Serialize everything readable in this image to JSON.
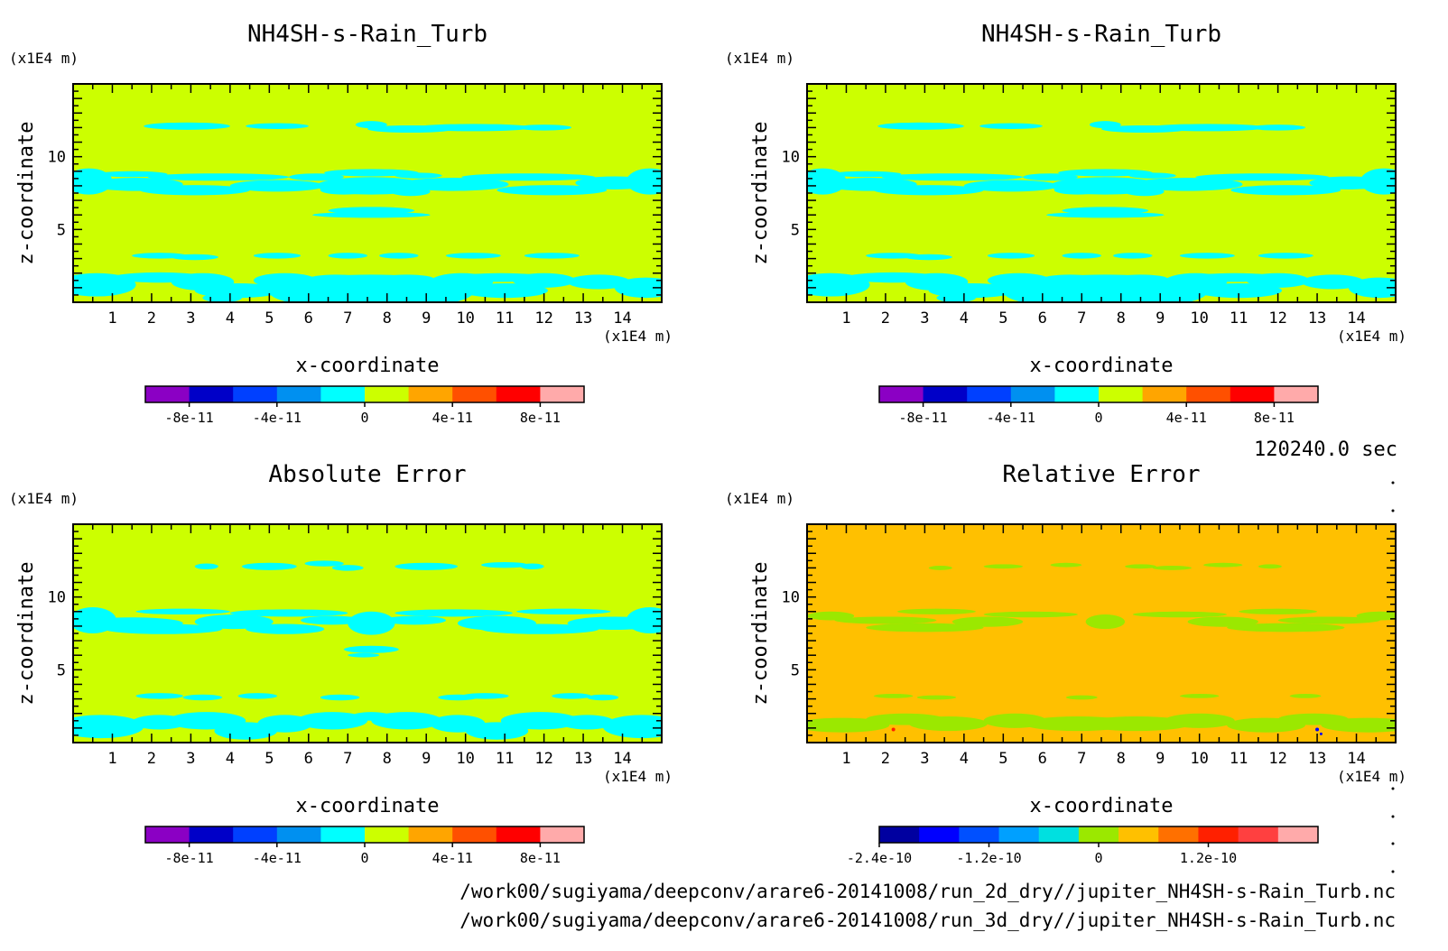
{
  "colors": {
    "frame": "#000000",
    "abs_palette": [
      "#8b00c4",
      "#0000c8",
      "#0040ff",
      "#0090f0",
      "#00ffff",
      "#ccff00",
      "#ffa500",
      "#ff5000",
      "#ff0000",
      "#ffaaaa"
    ],
    "rel_palette": [
      "#0000a0",
      "#0000ff",
      "#0050ff",
      "#00a0ff",
      "#00e0e0",
      "#9be800",
      "#ffc000",
      "#ff7000",
      "#ff2000",
      "#ff4040",
      "#ffaaaa"
    ]
  },
  "time_label": "120240.0 sec",
  "footer": {
    "line1": "/work00/sugiyama/deepconv/arare6-20141008/run_2d_dry//jupiter_NH4SH-s-Rain_Turb.nc",
    "line2": "/work00/sugiyama/deepconv/arare6-20141008/run_3d_dry//jupiter_NH4SH-s-Rain_Turb.nc"
  },
  "chart_data": [
    {
      "type": "heatmap",
      "title": "NH4SH-s-Rain_Turb",
      "xlabel": "x-coordinate",
      "ylabel": "z-coordinate",
      "x_unit": "(x1E4 m)",
      "y_unit": "(x1E4 m)",
      "xlim": [
        0,
        15
      ],
      "ylim": [
        0,
        15
      ],
      "x_ticks": [
        "1",
        "2",
        "3",
        "4",
        "5",
        "6",
        "7",
        "8",
        "9",
        "10",
        "11",
        "12",
        "13",
        "14"
      ],
      "y_ticks": [
        "5",
        "10"
      ],
      "background_level": "0 to 2e-11",
      "feature_level": "-2e-11 to 0",
      "colorbar": {
        "labels": [
          "-8e-11",
          "-4e-11",
          "0",
          "4e-11",
          "8e-11"
        ],
        "min": -1e-10,
        "max": 1e-10,
        "levels": 10,
        "palette": "abs"
      }
    },
    {
      "type": "heatmap",
      "title": "NH4SH-s-Rain_Turb",
      "xlabel": "x-coordinate",
      "ylabel": "z-coordinate",
      "x_unit": "(x1E4 m)",
      "y_unit": "(x1E4 m)",
      "xlim": [
        0,
        15
      ],
      "ylim": [
        0,
        15
      ],
      "x_ticks": [
        "1",
        "2",
        "3",
        "4",
        "5",
        "6",
        "7",
        "8",
        "9",
        "10",
        "11",
        "12",
        "13",
        "14"
      ],
      "y_ticks": [
        "5",
        "10"
      ],
      "background_level": "0 to 2e-11",
      "feature_level": "-2e-11 to 0",
      "colorbar": {
        "labels": [
          "-8e-11",
          "-4e-11",
          "0",
          "4e-11",
          "8e-11"
        ],
        "min": -1e-10,
        "max": 1e-10,
        "levels": 10,
        "palette": "abs"
      }
    },
    {
      "type": "heatmap",
      "title": "Absolute Error",
      "xlabel": "x-coordinate",
      "ylabel": "z-coordinate",
      "x_unit": "(x1E4 m)",
      "y_unit": "(x1E4 m)",
      "xlim": [
        0,
        15
      ],
      "ylim": [
        0,
        15
      ],
      "x_ticks": [
        "1",
        "2",
        "3",
        "4",
        "5",
        "6",
        "7",
        "8",
        "9",
        "10",
        "11",
        "12",
        "13",
        "14"
      ],
      "y_ticks": [
        "5",
        "10"
      ],
      "background_level": "0 to 2e-11",
      "feature_level": "-2e-11 to 0",
      "colorbar": {
        "labels": [
          "-8e-11",
          "-4e-11",
          "0",
          "4e-11",
          "8e-11"
        ],
        "min": -1e-10,
        "max": 1e-10,
        "levels": 10,
        "palette": "abs"
      }
    },
    {
      "type": "heatmap",
      "title": "Relative Error",
      "xlabel": "x-coordinate",
      "ylabel": "z-coordinate",
      "x_unit": "(x1E4 m)",
      "y_unit": "(x1E4 m)",
      "xlim": [
        0,
        15
      ],
      "ylim": [
        0,
        15
      ],
      "x_ticks": [
        "1",
        "2",
        "3",
        "4",
        "5",
        "6",
        "7",
        "8",
        "9",
        "10",
        "11",
        "12",
        "13",
        "14"
      ],
      "y_ticks": [
        "5",
        "10"
      ],
      "background_level": "0 to 2.2e-11",
      "feature_level": "-2.2e-11 to 0",
      "colorbar": {
        "labels": [
          "-2.4e-10",
          "-1.2e-10",
          "0",
          "1.2e-10"
        ],
        "min": -2.4e-10,
        "max": 2.4e-10,
        "levels": 11,
        "palette": "rel"
      }
    }
  ]
}
